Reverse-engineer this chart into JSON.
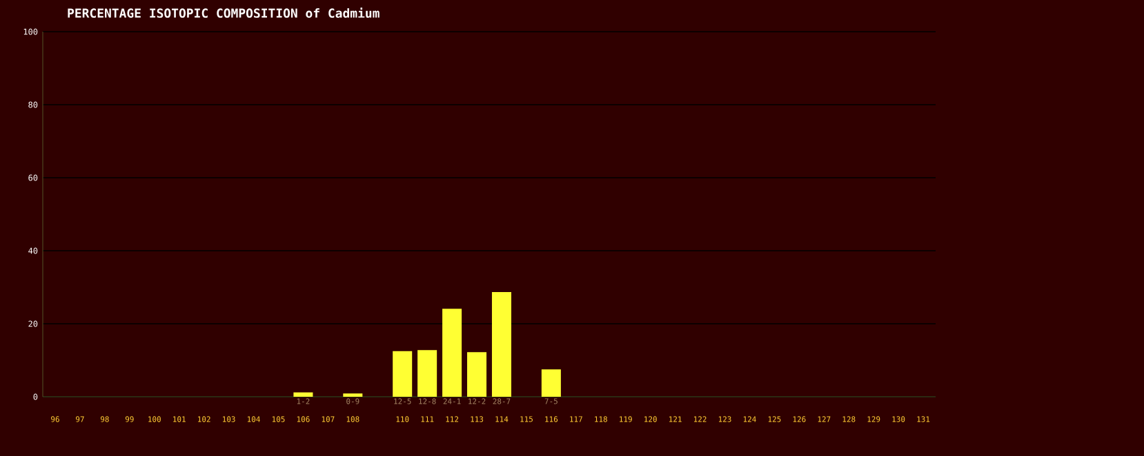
{
  "chart_data": {
    "type": "bar",
    "title": "PERCENTAGE ISOTOPIC COMPOSITION of Cadmium",
    "categories": [
      "96",
      "97",
      "98",
      "99",
      "100",
      "101",
      "102",
      "103",
      "104",
      "105",
      "106",
      "107",
      "108",
      null,
      "110",
      "111",
      "112",
      "113",
      "114",
      "115",
      "116",
      "117",
      "118",
      "119",
      "120",
      "121",
      "122",
      "123",
      "124",
      "125",
      "126",
      "127",
      "128",
      "129",
      "130",
      "131"
    ],
    "values": [
      null,
      null,
      null,
      null,
      null,
      null,
      null,
      null,
      null,
      null,
      1.2,
      null,
      0.9,
      null,
      12.5,
      12.8,
      24.1,
      12.2,
      28.7,
      null,
      7.5,
      null,
      null,
      null,
      null,
      null,
      null,
      null,
      null,
      null,
      null,
      null,
      null,
      null,
      null,
      null
    ],
    "value_labels": [
      null,
      null,
      null,
      null,
      null,
      null,
      null,
      null,
      null,
      null,
      "1-2",
      null,
      "0-9",
      null,
      "12-5",
      "12-8",
      "24-1",
      "12-2",
      "28-7",
      null,
      "7-5",
      null,
      null,
      null,
      null,
      null,
      null,
      null,
      null,
      null,
      null,
      null,
      null,
      null,
      null,
      null
    ],
    "color": "#ffff33",
    "ylim": [
      0,
      100
    ],
    "yticks": [
      0,
      20,
      40,
      60,
      80,
      100
    ],
    "grid": "y"
  }
}
